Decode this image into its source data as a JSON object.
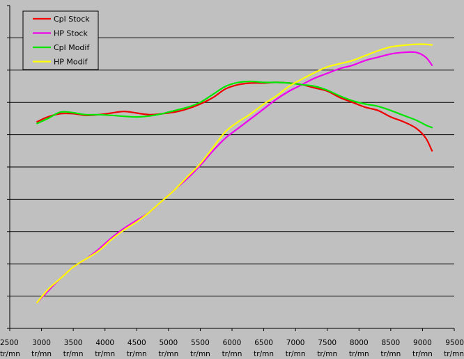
{
  "chart_data": {
    "type": "line",
    "title": "",
    "xlabel": "",
    "ylabel": "",
    "x_unit": "tr/mn",
    "x_ticks": [
      2500,
      3000,
      3500,
      4000,
      4500,
      5000,
      5500,
      6000,
      6500,
      7000,
      7500,
      8000,
      8500,
      9000,
      9500
    ],
    "xlim": [
      2500,
      9500
    ],
    "y_gridlines": 9,
    "y_tick_labels_shown": false,
    "grid": "horizontal",
    "legend_position": "top-left",
    "colors": {
      "plot_background": "#c0c0c0",
      "gridline": "#000000"
    },
    "series": [
      {
        "name": "Cpl Stock",
        "color": "#ee0000",
        "points": [
          [
            2930,
            6.4
          ],
          [
            3100,
            6.55
          ],
          [
            3300,
            6.65
          ],
          [
            3500,
            6.65
          ],
          [
            3700,
            6.6
          ],
          [
            3900,
            6.62
          ],
          [
            4100,
            6.67
          ],
          [
            4300,
            6.72
          ],
          [
            4500,
            6.67
          ],
          [
            4700,
            6.62
          ],
          [
            4900,
            6.65
          ],
          [
            5100,
            6.7
          ],
          [
            5300,
            6.8
          ],
          [
            5500,
            6.95
          ],
          [
            5700,
            7.15
          ],
          [
            5900,
            7.42
          ],
          [
            6100,
            7.55
          ],
          [
            6300,
            7.6
          ],
          [
            6500,
            7.6
          ],
          [
            6700,
            7.62
          ],
          [
            6900,
            7.6
          ],
          [
            7100,
            7.55
          ],
          [
            7300,
            7.45
          ],
          [
            7500,
            7.35
          ],
          [
            7700,
            7.15
          ],
          [
            7900,
            7.0
          ],
          [
            8100,
            6.85
          ],
          [
            8300,
            6.75
          ],
          [
            8500,
            6.55
          ],
          [
            8700,
            6.4
          ],
          [
            8900,
            6.2
          ],
          [
            9050,
            5.9
          ],
          [
            9150,
            5.5
          ]
        ]
      },
      {
        "name": "HP Stock",
        "color": "#ee00ee",
        "points": [
          [
            2930,
            0.8
          ],
          [
            3100,
            1.15
          ],
          [
            3300,
            1.55
          ],
          [
            3500,
            1.9
          ],
          [
            3700,
            2.15
          ],
          [
            3900,
            2.45
          ],
          [
            4100,
            2.8
          ],
          [
            4300,
            3.1
          ],
          [
            4500,
            3.35
          ],
          [
            4700,
            3.6
          ],
          [
            4900,
            3.95
          ],
          [
            5100,
            4.3
          ],
          [
            5300,
            4.65
          ],
          [
            5500,
            5.05
          ],
          [
            5700,
            5.5
          ],
          [
            5900,
            5.9
          ],
          [
            6100,
            6.2
          ],
          [
            6300,
            6.5
          ],
          [
            6500,
            6.8
          ],
          [
            6700,
            7.1
          ],
          [
            6900,
            7.35
          ],
          [
            7100,
            7.55
          ],
          [
            7300,
            7.75
          ],
          [
            7500,
            7.9
          ],
          [
            7700,
            8.05
          ],
          [
            7900,
            8.15
          ],
          [
            8100,
            8.3
          ],
          [
            8300,
            8.4
          ],
          [
            8500,
            8.5
          ],
          [
            8700,
            8.55
          ],
          [
            8900,
            8.55
          ],
          [
            9050,
            8.4
          ],
          [
            9150,
            8.15
          ]
        ]
      },
      {
        "name": "Cpl Modif",
        "color": "#00e600",
        "points": [
          [
            2930,
            6.35
          ],
          [
            3100,
            6.5
          ],
          [
            3300,
            6.7
          ],
          [
            3500,
            6.68
          ],
          [
            3700,
            6.62
          ],
          [
            3900,
            6.62
          ],
          [
            4100,
            6.6
          ],
          [
            4300,
            6.57
          ],
          [
            4500,
            6.55
          ],
          [
            4700,
            6.58
          ],
          [
            4900,
            6.65
          ],
          [
            5100,
            6.75
          ],
          [
            5300,
            6.85
          ],
          [
            5500,
            7.0
          ],
          [
            5700,
            7.25
          ],
          [
            5900,
            7.5
          ],
          [
            6100,
            7.62
          ],
          [
            6300,
            7.65
          ],
          [
            6500,
            7.62
          ],
          [
            6700,
            7.62
          ],
          [
            6900,
            7.6
          ],
          [
            7100,
            7.55
          ],
          [
            7300,
            7.5
          ],
          [
            7500,
            7.38
          ],
          [
            7700,
            7.2
          ],
          [
            7900,
            7.05
          ],
          [
            8100,
            6.95
          ],
          [
            8300,
            6.88
          ],
          [
            8500,
            6.75
          ],
          [
            8700,
            6.6
          ],
          [
            8900,
            6.45
          ],
          [
            9050,
            6.3
          ],
          [
            9150,
            6.22
          ]
        ]
      },
      {
        "name": "HP Modif",
        "color": "#ffff00",
        "points": [
          [
            2930,
            0.8
          ],
          [
            3100,
            1.2
          ],
          [
            3300,
            1.55
          ],
          [
            3500,
            1.9
          ],
          [
            3700,
            2.15
          ],
          [
            3900,
            2.4
          ],
          [
            4100,
            2.75
          ],
          [
            4300,
            3.05
          ],
          [
            4500,
            3.3
          ],
          [
            4700,
            3.6
          ],
          [
            4900,
            3.95
          ],
          [
            5100,
            4.3
          ],
          [
            5300,
            4.7
          ],
          [
            5500,
            5.1
          ],
          [
            5700,
            5.6
          ],
          [
            5900,
            6.1
          ],
          [
            6100,
            6.4
          ],
          [
            6300,
            6.65
          ],
          [
            6500,
            6.95
          ],
          [
            6700,
            7.2
          ],
          [
            6900,
            7.5
          ],
          [
            7100,
            7.72
          ],
          [
            7300,
            7.92
          ],
          [
            7500,
            8.1
          ],
          [
            7700,
            8.2
          ],
          [
            7900,
            8.3
          ],
          [
            8100,
            8.45
          ],
          [
            8300,
            8.6
          ],
          [
            8500,
            8.72
          ],
          [
            8700,
            8.77
          ],
          [
            8900,
            8.8
          ],
          [
            9050,
            8.8
          ],
          [
            9150,
            8.78
          ]
        ]
      }
    ]
  }
}
